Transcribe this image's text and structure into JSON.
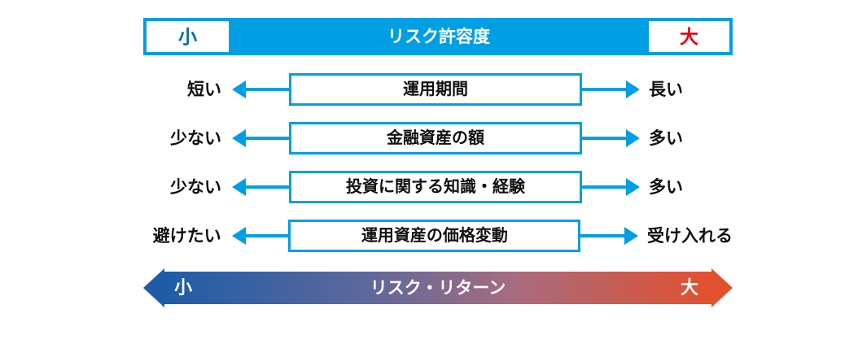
{
  "header": {
    "left_label": "小",
    "title": "リスク許容度",
    "right_label": "大"
  },
  "rows": [
    {
      "left": "短い",
      "center": "運用期間",
      "right": "長い"
    },
    {
      "left": "少ない",
      "center": "金融資産の額",
      "right": "多い"
    },
    {
      "left": "少ない",
      "center": "投資に関する知識・経験",
      "right": "多い"
    },
    {
      "left": "避けたい",
      "center": "運用資産の価格変動",
      "right": "受け入れる"
    }
  ],
  "footer": {
    "left_label": "小",
    "title": "リスク・リターン",
    "right_label": "大"
  },
  "colors": {
    "accent_blue": "#009FE3",
    "small_label_blue": "#0068B7",
    "large_label_red": "#E60012",
    "gradient_start_blue": "#1E5CA8",
    "gradient_end_red": "#E2502E"
  }
}
